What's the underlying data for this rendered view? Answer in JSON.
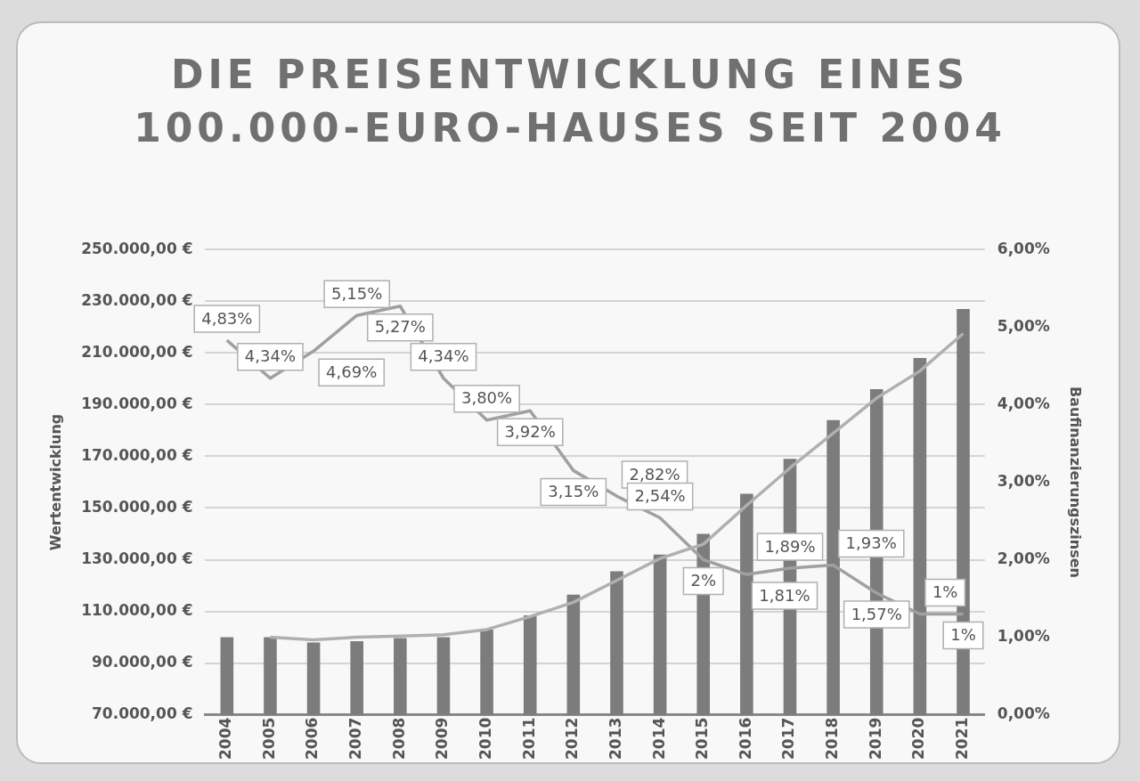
{
  "chart_data": {
    "type": "bar",
    "title": "DIE PREISENTWICKLUNG EINES 100.000-EURO-HAUSES SEIT 2004",
    "categories": [
      "2004",
      "2005",
      "2006",
      "2007",
      "2008",
      "2009",
      "2010",
      "2011",
      "2012",
      "2013",
      "2014",
      "2015",
      "2016",
      "2017",
      "2018",
      "2019",
      "2020",
      "2021"
    ],
    "series": [
      {
        "color": "#7c7c7c",
        "values": [
          100000,
          100000,
          98000,
          98500,
          99700,
          100000,
          103000,
          108500,
          116500,
          125500,
          132000,
          140000,
          155500,
          169000,
          184000,
          196000,
          208000,
          227000
        ]
      },
      {
        "type": "line",
        "color": "#b0b0b0",
        "values": [
          null,
          100000,
          99000,
          100000,
          100500,
          101000,
          103000,
          108000,
          113500,
          122000,
          130500,
          136000,
          151000,
          165500,
          179000,
          192500,
          203000,
          217500
        ]
      },
      {
        "type": "line",
        "axis": "y2",
        "color": "#a0a0a0",
        "values": [
          4.83,
          4.34,
          4.69,
          5.15,
          5.27,
          4.34,
          3.8,
          3.92,
          3.15,
          2.82,
          2.54,
          2.0,
          1.81,
          1.89,
          1.93,
          1.57,
          1.3,
          1.3
        ],
        "value_labels": [
          "4,83%",
          "4,34%",
          "4,69%",
          "5,15%",
          "5,27%",
          "4,34%",
          "3,80%",
          "3,92%",
          "3,15%",
          "2,82%",
          "2,54%",
          "2%",
          "1,81%",
          "1,89%",
          "1,93%",
          "1,57%",
          "1%",
          "1%"
        ]
      }
    ],
    "ylabel": "Wertentwicklung",
    "y2label": "Baufinanzierungszinsen",
    "ylim": [
      70000,
      250000
    ],
    "yticks": [
      {
        "value": 70000,
        "label": "70.000,00 €"
      },
      {
        "value": 90000,
        "label": "90.000,00 €"
      },
      {
        "value": 110000,
        "label": "110.000,00 €"
      },
      {
        "value": 130000,
        "label": "130.000,00 €"
      },
      {
        "value": 150000,
        "label": "150.000,00 €"
      },
      {
        "value": 170000,
        "label": "170.000,00 €"
      },
      {
        "value": 190000,
        "label": "190.000,00 €"
      },
      {
        "value": 210000,
        "label": "210.000,00 €"
      },
      {
        "value": 230000,
        "label": "230.000,00 €"
      },
      {
        "value": 250000,
        "label": "250.000,00 €"
      }
    ],
    "y2lim": [
      0,
      6
    ],
    "y2ticks": [
      {
        "value": 0,
        "label": "0,00%"
      },
      {
        "value": 1,
        "label": "1,00%"
      },
      {
        "value": 2,
        "label": "2,00%"
      },
      {
        "value": 3,
        "label": "3,00%"
      },
      {
        "value": 4,
        "label": "4,00%"
      },
      {
        "value": 5,
        "label": "5,00%"
      },
      {
        "value": 6,
        "label": "6,00%"
      }
    ],
    "grid": "y",
    "legend": false,
    "marker": "none",
    "line_style": "solid"
  }
}
